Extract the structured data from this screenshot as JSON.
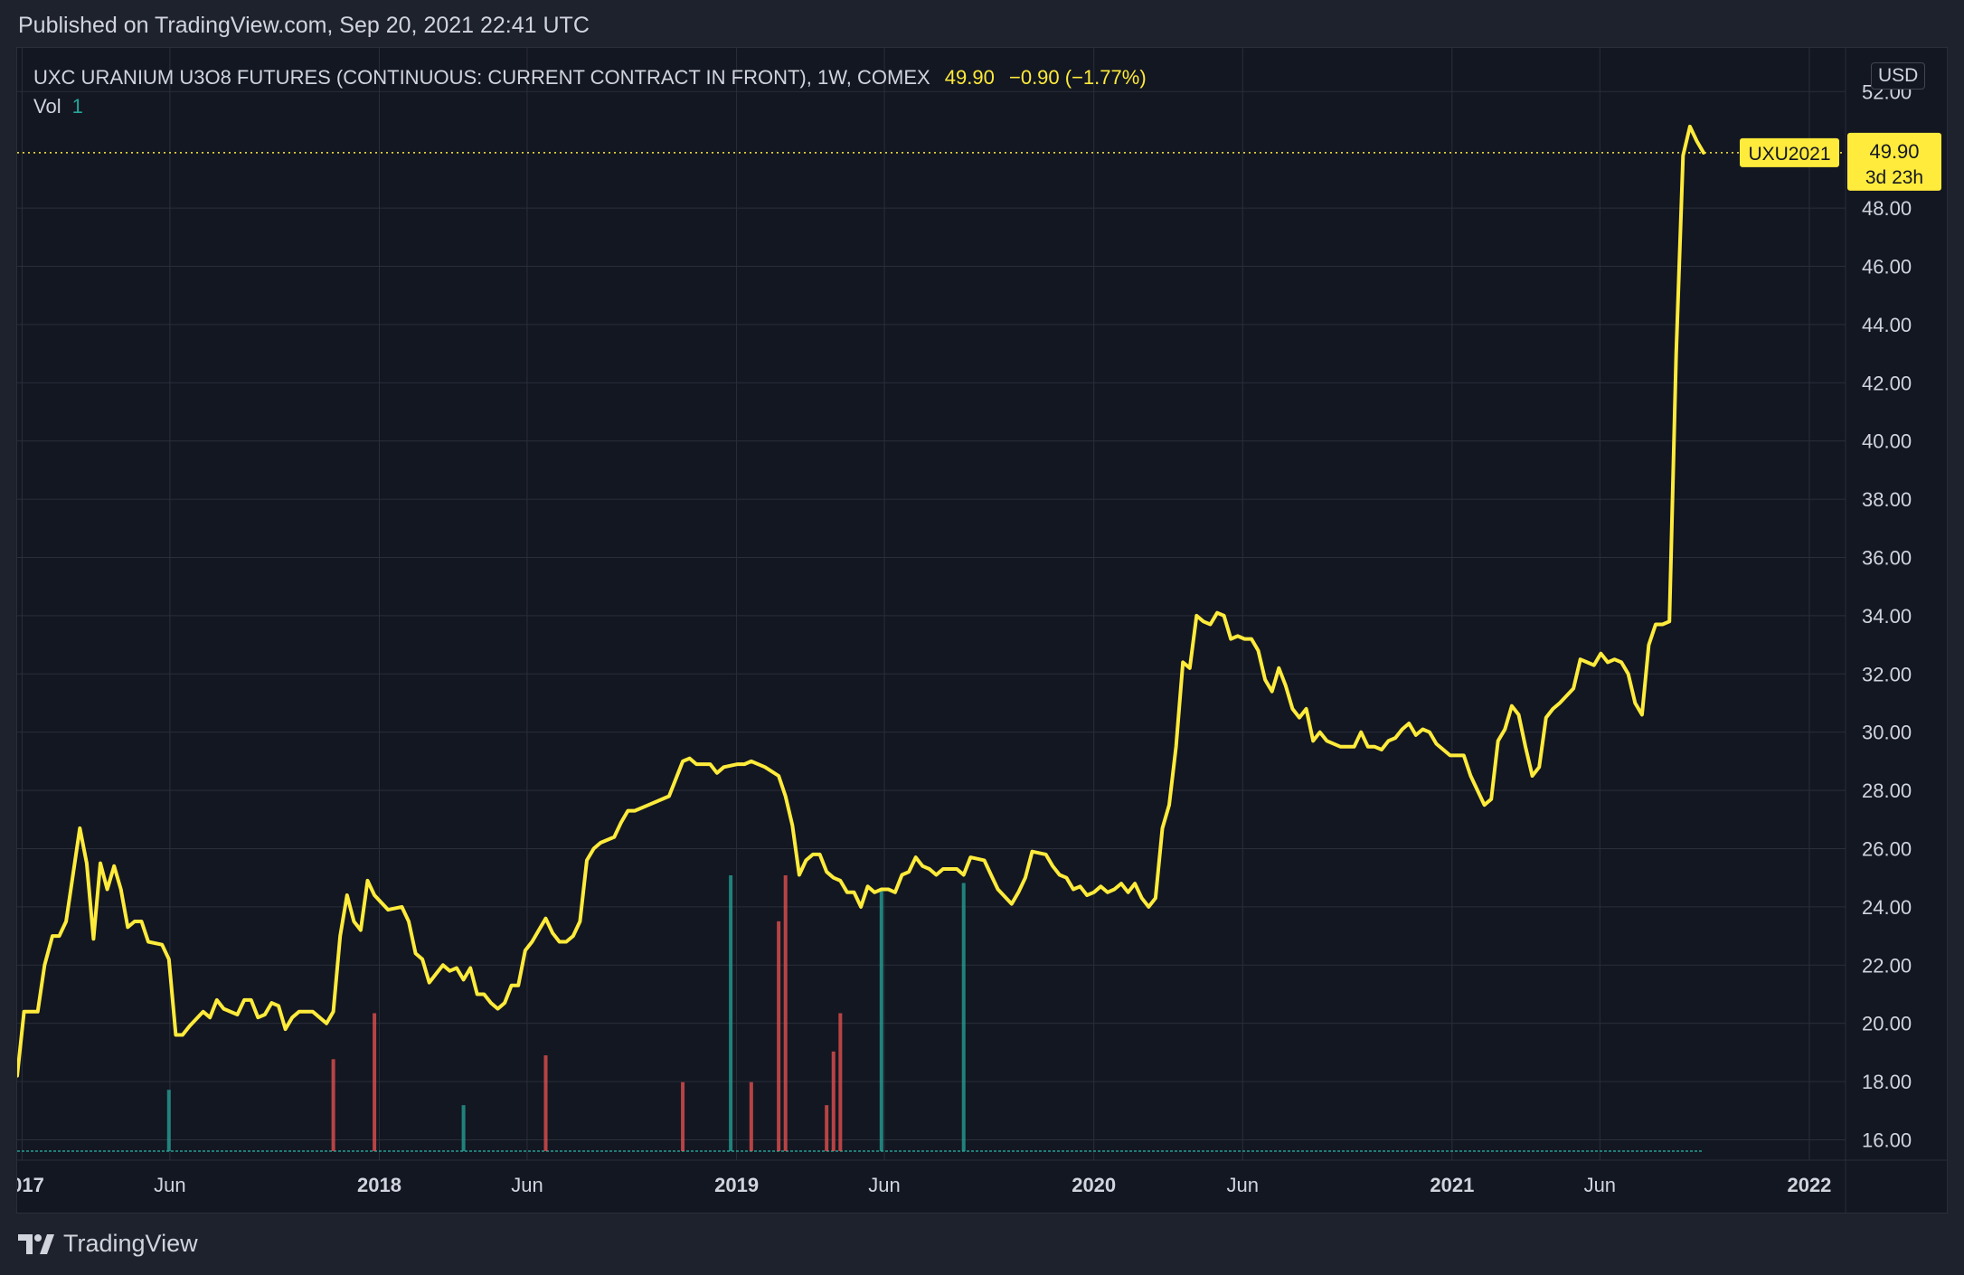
{
  "header": {
    "published": "Published on TradingView.com, Sep 20, 2021 22:41 UTC"
  },
  "legend": {
    "title": "UXC URANIUM U3O8 FUTURES (CONTINUOUS: CURRENT CONTRACT IN FRONT), 1W, COMEX",
    "price": "49.90",
    "change": "−0.90 (−1.77%)",
    "vol_label": "Vol",
    "vol_value": "1"
  },
  "currency": "USD",
  "footer": {
    "brand": "TradingView",
    "logo_icon": "tradingview-logo-icon"
  },
  "colors": {
    "line": "#ffeb3b",
    "background": "#131722",
    "frame": "#1e222d",
    "grid": "#2a2e39",
    "volume_up": "#26a69a",
    "volume_down": "#ef5350"
  },
  "chart_data": {
    "type": "line",
    "ylim": [
      15.3,
      53.5
    ],
    "y_ticks": [
      "52.00",
      "48.00",
      "46.00",
      "44.00",
      "42.00",
      "40.00",
      "38.00",
      "36.00",
      "34.00",
      "32.00",
      "30.00",
      "28.00",
      "26.00",
      "24.00",
      "22.00",
      "20.00",
      "18.00",
      "16.00"
    ],
    "x_ticks": [
      {
        "label": "2017",
        "date": "2017-01-01"
      },
      {
        "label": "Jun",
        "date": "2017-06-01"
      },
      {
        "label": "2018",
        "date": "2018-01-01"
      },
      {
        "label": "Jun",
        "date": "2018-06-01"
      },
      {
        "label": "2019",
        "date": "2019-01-01"
      },
      {
        "label": "Jun",
        "date": "2019-06-01"
      },
      {
        "label": "2020",
        "date": "2020-01-01"
      },
      {
        "label": "Jun",
        "date": "2020-06-01"
      },
      {
        "label": "2021",
        "date": "2021-01-01"
      },
      {
        "label": "Jun",
        "date": "2021-06-01"
      },
      {
        "label": "2022",
        "date": "2022-01-01"
      }
    ],
    "x_range": [
      "2016-12-27",
      "2022-02-07"
    ],
    "grid": true,
    "series": [
      {
        "points": [
          [
            "2016-12-27",
            18.2
          ],
          [
            "2017-01-03",
            20.4
          ],
          [
            "2017-01-17",
            20.4
          ],
          [
            "2017-01-24",
            22.0
          ],
          [
            "2017-02-01",
            23.0
          ],
          [
            "2017-02-08",
            23.0
          ],
          [
            "2017-02-15",
            23.5
          ],
          [
            "2017-03-01",
            26.7
          ],
          [
            "2017-03-08",
            25.5
          ],
          [
            "2017-03-15",
            22.9
          ],
          [
            "2017-03-22",
            25.5
          ],
          [
            "2017-03-29",
            24.6
          ],
          [
            "2017-04-05",
            25.4
          ],
          [
            "2017-04-12",
            24.6
          ],
          [
            "2017-04-19",
            23.3
          ],
          [
            "2017-04-26",
            23.5
          ],
          [
            "2017-05-03",
            23.5
          ],
          [
            "2017-05-10",
            22.8
          ],
          [
            "2017-05-24",
            22.7
          ],
          [
            "2017-05-31",
            22.2
          ],
          [
            "2017-06-07",
            19.6
          ],
          [
            "2017-06-14",
            19.6
          ],
          [
            "2017-06-21",
            19.9
          ],
          [
            "2017-07-05",
            20.4
          ],
          [
            "2017-07-12",
            20.2
          ],
          [
            "2017-07-19",
            20.8
          ],
          [
            "2017-07-26",
            20.5
          ],
          [
            "2017-08-09",
            20.3
          ],
          [
            "2017-08-16",
            20.8
          ],
          [
            "2017-08-23",
            20.8
          ],
          [
            "2017-08-30",
            20.2
          ],
          [
            "2017-09-06",
            20.3
          ],
          [
            "2017-09-13",
            20.7
          ],
          [
            "2017-09-20",
            20.6
          ],
          [
            "2017-09-27",
            19.8
          ],
          [
            "2017-10-04",
            20.2
          ],
          [
            "2017-10-11",
            20.4
          ],
          [
            "2017-10-25",
            20.4
          ],
          [
            "2017-11-08",
            20.0
          ],
          [
            "2017-11-15",
            20.4
          ],
          [
            "2017-11-22",
            23.0
          ],
          [
            "2017-11-29",
            24.4
          ],
          [
            "2017-12-06",
            23.5
          ],
          [
            "2017-12-13",
            23.2
          ],
          [
            "2017-12-20",
            24.9
          ],
          [
            "2017-12-27",
            24.4
          ],
          [
            "2018-01-10",
            23.9
          ],
          [
            "2018-01-24",
            24.0
          ],
          [
            "2018-01-31",
            23.5
          ],
          [
            "2018-02-07",
            22.4
          ],
          [
            "2018-02-14",
            22.2
          ],
          [
            "2018-02-21",
            21.4
          ],
          [
            "2018-02-28",
            21.7
          ],
          [
            "2018-03-07",
            22.0
          ],
          [
            "2018-03-14",
            21.8
          ],
          [
            "2018-03-21",
            21.9
          ],
          [
            "2018-03-28",
            21.5
          ],
          [
            "2018-04-04",
            21.9
          ],
          [
            "2018-04-11",
            21.0
          ],
          [
            "2018-04-18",
            21.0
          ],
          [
            "2018-04-25",
            20.7
          ],
          [
            "2018-05-02",
            20.5
          ],
          [
            "2018-05-09",
            20.7
          ],
          [
            "2018-05-16",
            21.3
          ],
          [
            "2018-05-23",
            21.3
          ],
          [
            "2018-05-30",
            22.5
          ],
          [
            "2018-06-06",
            22.8
          ],
          [
            "2018-06-13",
            23.2
          ],
          [
            "2018-06-20",
            23.6
          ],
          [
            "2018-06-27",
            23.1
          ],
          [
            "2018-07-04",
            22.8
          ],
          [
            "2018-07-11",
            22.8
          ],
          [
            "2018-07-18",
            23.0
          ],
          [
            "2018-07-25",
            23.5
          ],
          [
            "2018-08-01",
            25.6
          ],
          [
            "2018-08-08",
            26.0
          ],
          [
            "2018-08-15",
            26.2
          ],
          [
            "2018-08-29",
            26.4
          ],
          [
            "2018-09-05",
            26.9
          ],
          [
            "2018-09-12",
            27.3
          ],
          [
            "2018-09-19",
            27.3
          ],
          [
            "2018-10-03",
            27.5
          ],
          [
            "2018-10-24",
            27.8
          ],
          [
            "2018-11-07",
            29.0
          ],
          [
            "2018-11-14",
            29.1
          ],
          [
            "2018-11-21",
            28.9
          ],
          [
            "2018-12-05",
            28.9
          ],
          [
            "2018-12-12",
            28.6
          ],
          [
            "2018-12-19",
            28.8
          ],
          [
            "2019-01-02",
            28.9
          ],
          [
            "2019-01-09",
            28.9
          ],
          [
            "2019-01-16",
            29.0
          ],
          [
            "2019-01-30",
            28.8
          ],
          [
            "2019-02-13",
            28.5
          ],
          [
            "2019-02-20",
            27.8
          ],
          [
            "2019-02-27",
            26.8
          ],
          [
            "2019-03-06",
            25.1
          ],
          [
            "2019-03-13",
            25.6
          ],
          [
            "2019-03-20",
            25.8
          ],
          [
            "2019-03-27",
            25.8
          ],
          [
            "2019-04-03",
            25.2
          ],
          [
            "2019-04-10",
            25.0
          ],
          [
            "2019-04-17",
            24.9
          ],
          [
            "2019-04-24",
            24.5
          ],
          [
            "2019-05-01",
            24.5
          ],
          [
            "2019-05-08",
            24.0
          ],
          [
            "2019-05-15",
            24.7
          ],
          [
            "2019-05-22",
            24.5
          ],
          [
            "2019-05-29",
            24.6
          ],
          [
            "2019-06-05",
            24.6
          ],
          [
            "2019-06-12",
            24.5
          ],
          [
            "2019-06-19",
            25.1
          ],
          [
            "2019-06-26",
            25.2
          ],
          [
            "2019-07-03",
            25.7
          ],
          [
            "2019-07-10",
            25.4
          ],
          [
            "2019-07-17",
            25.3
          ],
          [
            "2019-07-24",
            25.1
          ],
          [
            "2019-07-31",
            25.3
          ],
          [
            "2019-08-14",
            25.3
          ],
          [
            "2019-08-21",
            25.1
          ],
          [
            "2019-08-28",
            25.7
          ],
          [
            "2019-09-11",
            25.6
          ],
          [
            "2019-09-18",
            25.1
          ],
          [
            "2019-09-25",
            24.6
          ],
          [
            "2019-10-09",
            24.1
          ],
          [
            "2019-10-16",
            24.5
          ],
          [
            "2019-10-23",
            25.0
          ],
          [
            "2019-10-30",
            25.9
          ],
          [
            "2019-11-13",
            25.8
          ],
          [
            "2019-11-20",
            25.4
          ],
          [
            "2019-11-27",
            25.1
          ],
          [
            "2019-12-04",
            25.0
          ],
          [
            "2019-12-11",
            24.6
          ],
          [
            "2019-12-18",
            24.7
          ],
          [
            "2019-12-25",
            24.4
          ],
          [
            "2020-01-01",
            24.5
          ],
          [
            "2020-01-08",
            24.7
          ],
          [
            "2020-01-15",
            24.5
          ],
          [
            "2020-01-22",
            24.6
          ],
          [
            "2020-01-29",
            24.8
          ],
          [
            "2020-02-05",
            24.5
          ],
          [
            "2020-02-12",
            24.8
          ],
          [
            "2020-02-19",
            24.3
          ],
          [
            "2020-02-26",
            24.0
          ],
          [
            "2020-03-04",
            24.3
          ],
          [
            "2020-03-11",
            26.7
          ],
          [
            "2020-03-18",
            27.5
          ],
          [
            "2020-03-25",
            29.5
          ],
          [
            "2020-04-01",
            32.4
          ],
          [
            "2020-04-08",
            32.2
          ],
          [
            "2020-04-15",
            34.0
          ],
          [
            "2020-04-22",
            33.8
          ],
          [
            "2020-04-29",
            33.7
          ],
          [
            "2020-05-06",
            34.1
          ],
          [
            "2020-05-13",
            34.0
          ],
          [
            "2020-05-20",
            33.2
          ],
          [
            "2020-05-27",
            33.3
          ],
          [
            "2020-06-03",
            33.2
          ],
          [
            "2020-06-10",
            33.2
          ],
          [
            "2020-06-17",
            32.8
          ],
          [
            "2020-06-24",
            31.8
          ],
          [
            "2020-07-01",
            31.4
          ],
          [
            "2020-07-08",
            32.2
          ],
          [
            "2020-07-15",
            31.6
          ],
          [
            "2020-07-22",
            30.8
          ],
          [
            "2020-07-29",
            30.5
          ],
          [
            "2020-08-05",
            30.8
          ],
          [
            "2020-08-12",
            29.7
          ],
          [
            "2020-08-19",
            30.0
          ],
          [
            "2020-08-26",
            29.7
          ],
          [
            "2020-09-02",
            29.6
          ],
          [
            "2020-09-09",
            29.5
          ],
          [
            "2020-09-23",
            29.5
          ],
          [
            "2020-09-30",
            30.0
          ],
          [
            "2020-10-07",
            29.5
          ],
          [
            "2020-10-14",
            29.5
          ],
          [
            "2020-10-21",
            29.4
          ],
          [
            "2020-10-28",
            29.7
          ],
          [
            "2020-11-04",
            29.8
          ],
          [
            "2020-11-11",
            30.1
          ],
          [
            "2020-11-18",
            30.3
          ],
          [
            "2020-11-25",
            29.9
          ],
          [
            "2020-12-02",
            30.1
          ],
          [
            "2020-12-09",
            30.0
          ],
          [
            "2020-12-16",
            29.6
          ],
          [
            "2020-12-23",
            29.4
          ],
          [
            "2020-12-30",
            29.2
          ],
          [
            "2021-01-13",
            29.2
          ],
          [
            "2021-01-20",
            28.5
          ],
          [
            "2021-01-27",
            28.0
          ],
          [
            "2021-02-03",
            27.5
          ],
          [
            "2021-02-10",
            27.7
          ],
          [
            "2021-02-17",
            29.7
          ],
          [
            "2021-02-24",
            30.1
          ],
          [
            "2021-03-03",
            30.9
          ],
          [
            "2021-03-10",
            30.6
          ],
          [
            "2021-03-17",
            29.5
          ],
          [
            "2021-03-24",
            28.5
          ],
          [
            "2021-03-31",
            28.8
          ],
          [
            "2021-04-07",
            30.5
          ],
          [
            "2021-04-14",
            30.8
          ],
          [
            "2021-04-21",
            31.0
          ],
          [
            "2021-05-05",
            31.5
          ],
          [
            "2021-05-12",
            32.5
          ],
          [
            "2021-05-19",
            32.4
          ],
          [
            "2021-05-26",
            32.3
          ],
          [
            "2021-06-02",
            32.7
          ],
          [
            "2021-06-09",
            32.4
          ],
          [
            "2021-06-16",
            32.5
          ],
          [
            "2021-06-23",
            32.4
          ],
          [
            "2021-06-30",
            32.0
          ],
          [
            "2021-07-07",
            31.0
          ],
          [
            "2021-07-14",
            30.6
          ],
          [
            "2021-07-21",
            33.0
          ],
          [
            "2021-07-28",
            33.7
          ],
          [
            "2021-08-04",
            33.7
          ],
          [
            "2021-08-11",
            33.8
          ],
          [
            "2021-08-18",
            43.0
          ],
          [
            "2021-08-25",
            49.8
          ],
          [
            "2021-09-01",
            50.8
          ],
          [
            "2021-09-08",
            50.3
          ],
          [
            "2021-09-15",
            49.9
          ]
        ]
      }
    ],
    "volume": [
      {
        "date": "2017-05-31",
        "value": 8,
        "dir": "up"
      },
      {
        "date": "2017-11-15",
        "value": 12,
        "dir": "down"
      },
      {
        "date": "2017-12-27",
        "value": 18,
        "dir": "down"
      },
      {
        "date": "2018-03-28",
        "value": 6,
        "dir": "up"
      },
      {
        "date": "2018-06-20",
        "value": 12.5,
        "dir": "down"
      },
      {
        "date": "2018-11-07",
        "value": 9,
        "dir": "down"
      },
      {
        "date": "2018-12-26",
        "value": 36,
        "dir": "up"
      },
      {
        "date": "2019-01-16",
        "value": 9,
        "dir": "down"
      },
      {
        "date": "2019-02-13",
        "value": 30,
        "dir": "down"
      },
      {
        "date": "2019-02-20",
        "value": 36,
        "dir": "down"
      },
      {
        "date": "2019-04-03",
        "value": 6,
        "dir": "down"
      },
      {
        "date": "2019-04-10",
        "value": 13,
        "dir": "down"
      },
      {
        "date": "2019-04-17",
        "value": 18,
        "dir": "down"
      },
      {
        "date": "2019-05-29",
        "value": 34,
        "dir": "up"
      },
      {
        "date": "2019-08-21",
        "value": 35,
        "dir": "up"
      }
    ],
    "last_label": {
      "symbol": "UXU2021",
      "price": "49.90",
      "countdown": "3d 23h"
    }
  }
}
